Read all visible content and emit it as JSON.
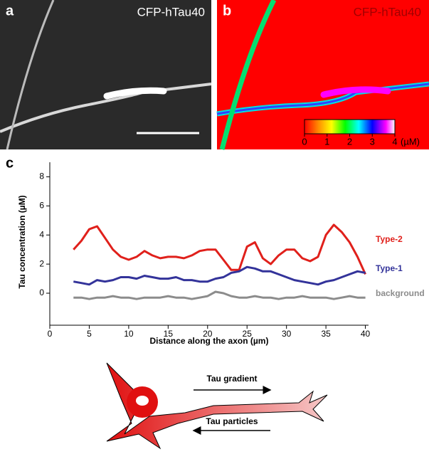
{
  "panel_labels": [
    "a",
    "b",
    "c"
  ],
  "image_labels": [
    "CFP-hTau40",
    "CFP-hTau40"
  ],
  "colorbar": {
    "ticks": [
      0,
      1,
      2,
      3,
      4
    ],
    "unit": "(µM)"
  },
  "chart_data": {
    "type": "line",
    "xlabel": "Distance along the axon (µm)",
    "ylabel": "Tau concentration (µM)",
    "xlim": [
      0,
      40.4
    ],
    "ylim": [
      -2.2,
      9
    ],
    "xticks": [
      0,
      5,
      10,
      15,
      20,
      25,
      30,
      35,
      40
    ],
    "yticks": [
      0,
      2,
      4,
      6,
      8
    ],
    "x": [
      3,
      4,
      5,
      6,
      7,
      8,
      9,
      10,
      11,
      12,
      13,
      14,
      15,
      16,
      17,
      18,
      19,
      20,
      21,
      22,
      23,
      24,
      25,
      26,
      27,
      28,
      29,
      30,
      31,
      32,
      33,
      34,
      35,
      36,
      37,
      38,
      39,
      40
    ],
    "series": [
      {
        "name": "Type-2",
        "color": "#e0201b",
        "values": [
          3.0,
          3.6,
          4.4,
          4.6,
          3.8,
          3.0,
          2.5,
          2.3,
          2.5,
          2.9,
          2.6,
          2.4,
          2.5,
          2.5,
          2.4,
          2.6,
          2.9,
          3.0,
          3.0,
          2.3,
          1.6,
          1.6,
          3.2,
          3.5,
          2.4,
          2.0,
          2.6,
          3.0,
          3.0,
          2.4,
          2.2,
          2.5,
          4.0,
          4.7,
          4.2,
          3.5,
          2.5,
          1.3
        ]
      },
      {
        "name": "Type-1",
        "color": "#33339a",
        "values": [
          0.8,
          0.7,
          0.6,
          0.9,
          0.8,
          0.9,
          1.1,
          1.1,
          1.0,
          1.2,
          1.1,
          1.0,
          1.0,
          1.1,
          0.9,
          0.9,
          0.8,
          0.8,
          1.0,
          1.1,
          1.4,
          1.5,
          1.8,
          1.7,
          1.5,
          1.5,
          1.3,
          1.1,
          0.9,
          0.8,
          0.7,
          0.6,
          0.8,
          0.9,
          1.1,
          1.3,
          1.5,
          1.4
        ]
      },
      {
        "name": "background",
        "color": "#8c8c8c",
        "values": [
          -0.3,
          -0.3,
          -0.4,
          -0.3,
          -0.3,
          -0.2,
          -0.3,
          -0.3,
          -0.4,
          -0.3,
          -0.3,
          -0.3,
          -0.2,
          -0.3,
          -0.3,
          -0.4,
          -0.3,
          -0.2,
          0.1,
          0.0,
          -0.2,
          -0.3,
          -0.3,
          -0.2,
          -0.3,
          -0.3,
          -0.4,
          -0.3,
          -0.3,
          -0.2,
          -0.3,
          -0.3,
          -0.3,
          -0.4,
          -0.3,
          -0.2,
          -0.3,
          -0.3
        ]
      }
    ]
  },
  "diagram": {
    "labels": [
      "Tau gradient",
      "Tau particles"
    ]
  }
}
